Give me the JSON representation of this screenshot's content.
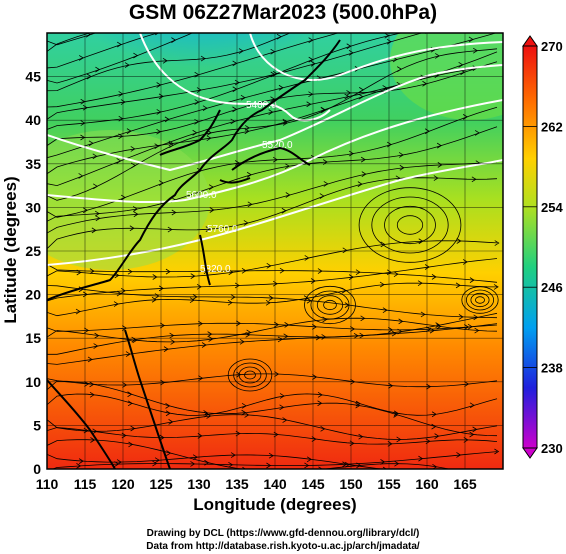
{
  "title": "GSM 06Z27Mar2023 (500.0hPa)",
  "x_axis": {
    "label": "Longitude (degrees)",
    "min": 110,
    "max": 170,
    "ticks": [
      "110",
      "115",
      "120",
      "125",
      "130",
      "135",
      "140",
      "145",
      "150",
      "155",
      "160",
      "165"
    ]
  },
  "y_axis": {
    "label": "Latitude  (degrees)",
    "min": 0,
    "max": 50,
    "ticks": [
      "0",
      "5",
      "10",
      "15",
      "20",
      "25",
      "30",
      "35",
      "40",
      "45"
    ]
  },
  "colorbar": {
    "min": 230,
    "max": 270,
    "labels": [
      "270",
      "262",
      "254",
      "246",
      "238",
      "230"
    ],
    "colors": [
      "#cc00cc",
      "#2020dd",
      "#00a0f0",
      "#20d080",
      "#b0e020",
      "#ffd000",
      "#ff7000",
      "#ee1010"
    ]
  },
  "contour_labels": [
    "5400.0",
    "5520.0",
    "5600.0",
    "5760.0",
    "5820.0"
  ],
  "credits": {
    "line1": "Drawing by DCL (https://www.gfd-dennou.org/library/dcl/)",
    "line2": "Data from http://database.rish.kyoto-u.ac.jp/arch/jmadata/"
  }
}
